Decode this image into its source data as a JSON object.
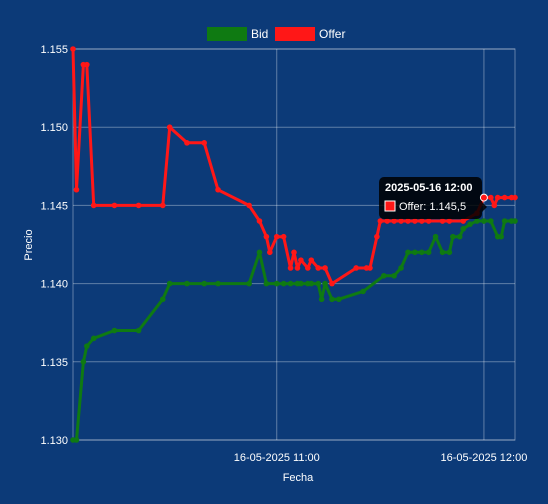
{
  "chart_data": {
    "type": "line",
    "xlabel": "Fecha",
    "ylabel": "Precio",
    "ylim": [
      1.13,
      1.155
    ],
    "y_ticks": [
      "1.130",
      "1.135",
      "1.140",
      "1.145",
      "1.150",
      "1.155"
    ],
    "x_ticks": [
      {
        "time": "2025-05-16 11:00",
        "label": "16-05-2025 11:00"
      },
      {
        "time": "2025-05-16 12:00",
        "label": "16-05-2025 12:00"
      }
    ],
    "xlim": [
      "2025-05-16 10:01",
      "2025-05-16 12:09"
    ],
    "grid": true,
    "legend_position": "top",
    "series": [
      {
        "name": "Bid",
        "color": "#0f7a12",
        "points": [
          [
            "2025-05-16 10:01",
            1.13
          ],
          [
            "2025-05-16 10:02",
            1.13
          ],
          [
            "2025-05-16 10:04",
            1.135
          ],
          [
            "2025-05-16 10:05",
            1.136
          ],
          [
            "2025-05-16 10:07",
            1.1365
          ],
          [
            "2025-05-16 10:13",
            1.137
          ],
          [
            "2025-05-16 10:20",
            1.137
          ],
          [
            "2025-05-16 10:27",
            1.139
          ],
          [
            "2025-05-16 10:29",
            1.14
          ],
          [
            "2025-05-16 10:34",
            1.14
          ],
          [
            "2025-05-16 10:39",
            1.14
          ],
          [
            "2025-05-16 10:43",
            1.14
          ],
          [
            "2025-05-16 10:52",
            1.14
          ],
          [
            "2025-05-16 10:55",
            1.142
          ],
          [
            "2025-05-16 10:57",
            1.14
          ],
          [
            "2025-05-16 11:00",
            1.14
          ],
          [
            "2025-05-16 11:02",
            1.14
          ],
          [
            "2025-05-16 11:04",
            1.14
          ],
          [
            "2025-05-16 11:06",
            1.14
          ],
          [
            "2025-05-16 11:07",
            1.14
          ],
          [
            "2025-05-16 11:09",
            1.14
          ],
          [
            "2025-05-16 11:10",
            1.14
          ],
          [
            "2025-05-16 11:12",
            1.14
          ],
          [
            "2025-05-16 11:13",
            1.139
          ],
          [
            "2025-05-16 11:14",
            1.14
          ],
          [
            "2025-05-16 11:16",
            1.139
          ],
          [
            "2025-05-16 11:18",
            1.139
          ],
          [
            "2025-05-16 11:25",
            1.1395
          ],
          [
            "2025-05-16 11:31",
            1.1405
          ],
          [
            "2025-05-16 11:34",
            1.1405
          ],
          [
            "2025-05-16 11:36",
            1.141
          ],
          [
            "2025-05-16 11:38",
            1.142
          ],
          [
            "2025-05-16 11:40",
            1.142
          ],
          [
            "2025-05-16 11:42",
            1.142
          ],
          [
            "2025-05-16 11:44",
            1.142
          ],
          [
            "2025-05-16 11:46",
            1.143
          ],
          [
            "2025-05-16 11:48",
            1.142
          ],
          [
            "2025-05-16 11:50",
            1.142
          ],
          [
            "2025-05-16 11:51",
            1.143
          ],
          [
            "2025-05-16 11:53",
            1.143
          ],
          [
            "2025-05-16 11:54",
            1.1435
          ],
          [
            "2025-05-16 11:56",
            1.1438
          ],
          [
            "2025-05-16 11:58",
            1.144
          ],
          [
            "2025-05-16 12:00",
            1.144
          ],
          [
            "2025-05-16 12:02",
            1.144
          ],
          [
            "2025-05-16 12:04",
            1.143
          ],
          [
            "2025-05-16 12:05",
            1.143
          ],
          [
            "2025-05-16 12:06",
            1.144
          ],
          [
            "2025-05-16 12:08",
            1.144
          ],
          [
            "2025-05-16 12:09",
            1.144
          ]
        ]
      },
      {
        "name": "Offer",
        "color": "#ff1717",
        "points": [
          [
            "2025-05-16 10:01",
            1.155
          ],
          [
            "2025-05-16 10:02",
            1.146
          ],
          [
            "2025-05-16 10:04",
            1.154
          ],
          [
            "2025-05-16 10:05",
            1.154
          ],
          [
            "2025-05-16 10:07",
            1.145
          ],
          [
            "2025-05-16 10:13",
            1.145
          ],
          [
            "2025-05-16 10:20",
            1.145
          ],
          [
            "2025-05-16 10:27",
            1.145
          ],
          [
            "2025-05-16 10:29",
            1.15
          ],
          [
            "2025-05-16 10:34",
            1.149
          ],
          [
            "2025-05-16 10:39",
            1.149
          ],
          [
            "2025-05-16 10:43",
            1.146
          ],
          [
            "2025-05-16 10:52",
            1.145
          ],
          [
            "2025-05-16 10:55",
            1.144
          ],
          [
            "2025-05-16 10:57",
            1.143
          ],
          [
            "2025-05-16 10:58",
            1.142
          ],
          [
            "2025-05-16 11:00",
            1.143
          ],
          [
            "2025-05-16 11:02",
            1.143
          ],
          [
            "2025-05-16 11:04",
            1.141
          ],
          [
            "2025-05-16 11:05",
            1.142
          ],
          [
            "2025-05-16 11:06",
            1.141
          ],
          [
            "2025-05-16 11:07",
            1.1415
          ],
          [
            "2025-05-16 11:09",
            1.141
          ],
          [
            "2025-05-16 11:10",
            1.1415
          ],
          [
            "2025-05-16 11:12",
            1.141
          ],
          [
            "2025-05-16 11:14",
            1.141
          ],
          [
            "2025-05-16 11:16",
            1.14
          ],
          [
            "2025-05-16 11:23",
            1.141
          ],
          [
            "2025-05-16 11:26",
            1.141
          ],
          [
            "2025-05-16 11:27",
            1.141
          ],
          [
            "2025-05-16 11:29",
            1.143
          ],
          [
            "2025-05-16 11:30",
            1.144
          ],
          [
            "2025-05-16 11:32",
            1.144
          ],
          [
            "2025-05-16 11:34",
            1.144
          ],
          [
            "2025-05-16 11:36",
            1.144
          ],
          [
            "2025-05-16 11:38",
            1.144
          ],
          [
            "2025-05-16 11:40",
            1.144
          ],
          [
            "2025-05-16 11:42",
            1.144
          ],
          [
            "2025-05-16 11:44",
            1.144
          ],
          [
            "2025-05-16 11:48",
            1.144
          ],
          [
            "2025-05-16 11:50",
            1.144
          ],
          [
            "2025-05-16 11:54",
            1.144
          ],
          [
            "2025-05-16 11:58",
            1.1445
          ],
          [
            "2025-05-16 12:00",
            1.1455
          ],
          [
            "2025-05-16 12:02",
            1.1455
          ],
          [
            "2025-05-16 12:03",
            1.145
          ],
          [
            "2025-05-16 12:04",
            1.1455
          ],
          [
            "2025-05-16 12:06",
            1.1455
          ],
          [
            "2025-05-16 12:08",
            1.1455
          ],
          [
            "2025-05-16 12:09",
            1.1455
          ]
        ]
      }
    ],
    "tooltip": {
      "title": "2025-05-16 12:00",
      "series": "Offer",
      "text": "Offer: 1.145,5",
      "time": "2025-05-16 12:00",
      "value": 1.1455
    }
  }
}
